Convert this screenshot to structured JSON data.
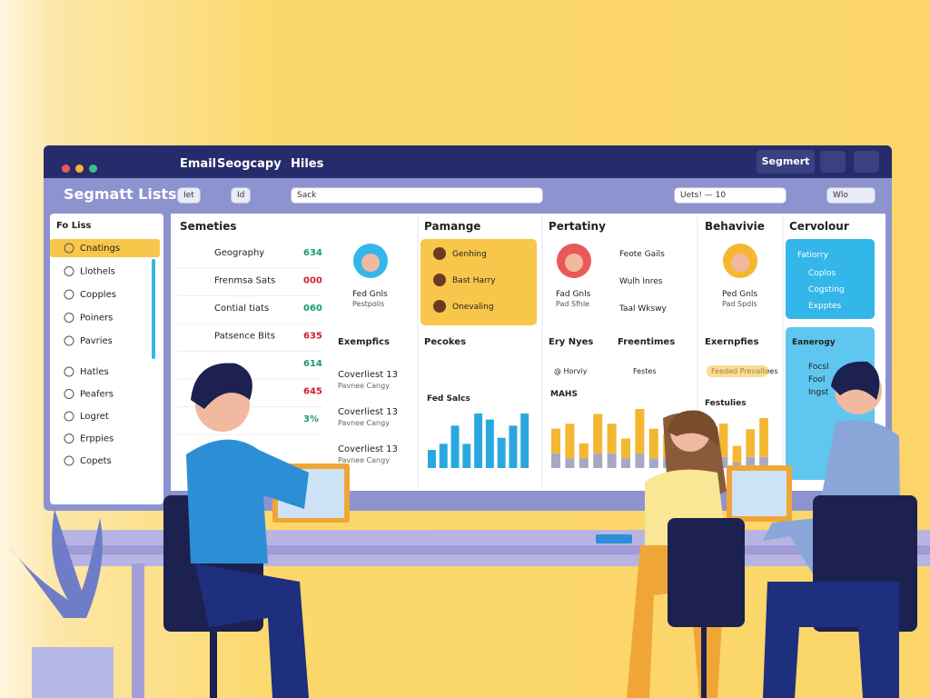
{
  "window": {
    "tabs": [
      "Email",
      "Seogcapy",
      "Hiles"
    ],
    "button": "Segmert"
  },
  "toolbar": {
    "title": "Segmatt Lists",
    "filters": [
      "Iet",
      "Id"
    ],
    "search": "Sack",
    "range": "Uets! — 10",
    "view": "Wlo"
  },
  "sidebar": {
    "header": "Fo Liss",
    "items": [
      "Cnatings",
      "Llothels",
      "Copples",
      "Poiners",
      "Pavries",
      "Hatles",
      "Peafers",
      "Logret",
      "Erppies",
      "Copets"
    ]
  },
  "columns": [
    "Semeties",
    "Pamange",
    "Pertatiny",
    "Behavivie",
    "Cervolour"
  ],
  "list": [
    {
      "label": "Geography",
      "value": "634"
    },
    {
      "label": "Frenmsa Sats",
      "value": "000"
    },
    {
      "label": "Contial tiats",
      "value": "060"
    },
    {
      "label": "Patsence Bits",
      "value": "635"
    },
    {
      "label": "",
      "value": "614"
    },
    {
      "label": "",
      "value": "645"
    },
    {
      "label": "",
      "value": "3%"
    }
  ],
  "segments": [
    {
      "title": "Coverliest 13",
      "sub": "Pavnee Cangy"
    },
    {
      "title": "Coverliest 13",
      "sub": "Pavnee Cangy"
    },
    {
      "title": "Coverliest 13",
      "sub": "Pavnee Cangy"
    }
  ],
  "rows": [
    "Exempfics",
    "Pecokes",
    "Ery Nyes",
    "Freentimes",
    "Exernpfies"
  ],
  "profiles": [
    {
      "name": "Fed Gnls",
      "sub": "Pestpolis"
    },
    {
      "name": "Fad Gnls",
      "sub": "Pad Sfhle"
    },
    {
      "name": "Ped Gnls",
      "sub": "Pad Spdls"
    }
  ],
  "highlight": [
    "Genhing",
    "Bast Harry",
    "Onevaling"
  ],
  "side": [
    "Feote Gails",
    "Wulh Inres",
    "Taal Wkswy"
  ],
  "panel": {
    "title": "Fatiorry",
    "items": [
      "Coplos",
      "Cogsting",
      "Expptes"
    ],
    "title2": "Eanerogy",
    "items2": [
      "Focsl",
      "Fool",
      "Ingst"
    ]
  },
  "charts": [
    {
      "title": "Fed Salcs",
      "values": [
        3,
        4,
        7,
        4,
        9,
        8,
        5,
        7,
        9
      ]
    },
    {
      "title": "MAHS",
      "series": [
        {
          "color": "#f4b731",
          "values": [
            5,
            7,
            3,
            8,
            6,
            4,
            9,
            6,
            5,
            8
          ]
        },
        {
          "color": "#a7a9c2",
          "values": [
            3,
            2,
            2,
            3,
            3,
            2,
            3,
            2,
            2,
            3
          ]
        }
      ]
    },
    {
      "title": "Festulies",
      "series": [
        {
          "color": "#f4b731",
          "values": [
            4,
            6,
            3,
            5,
            7
          ]
        },
        {
          "color": "#a7a9c2",
          "values": [
            2,
            2,
            1,
            2,
            2
          ]
        }
      ]
    }
  ],
  "tags": [
    "@ Horviy",
    "Festes",
    "Feeded Preoaltees"
  ]
}
